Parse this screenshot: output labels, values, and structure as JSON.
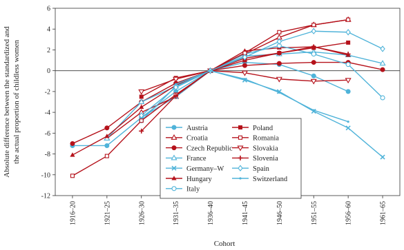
{
  "chart_data": {
    "type": "line",
    "title": "",
    "xlabel": "Cohort",
    "ylabel": "Absolute difference between the standardized and the actual proportion of childless women",
    "ylabel_lines": [
      "Absolute difference between the standardized and",
      "the actual proportion of childless women"
    ],
    "categories": [
      "1916–20",
      "1921–25",
      "1926–30",
      "1931–35",
      "1936–40",
      "1941–45",
      "1946–50",
      "1951–55",
      "1956–60",
      "1961–65"
    ],
    "ylim": [
      -12,
      6
    ],
    "yticks": [
      6,
      4,
      2,
      0,
      -2,
      -4,
      -6,
      -8,
      -10,
      -12
    ],
    "grid": false,
    "legend_position": "center",
    "series": [
      {
        "name": "Austria",
        "color": "#4fb3d9",
        "marker": "circle-filled",
        "values": [
          -7.2,
          -7.2,
          -4.5,
          -2.0,
          0.0,
          0.8,
          0.6,
          -0.5,
          -2.0,
          null
        ]
      },
      {
        "name": "Croatia",
        "color": "#b5121b",
        "marker": "triangle-open",
        "values": [
          null,
          -6.5,
          -4.0,
          -2.5,
          0.0,
          1.6,
          3.2,
          4.4,
          4.9,
          null
        ]
      },
      {
        "name": "Czech Republic",
        "color": "#b5121b",
        "marker": "circle-filled",
        "values": [
          -7.0,
          -5.5,
          -3.0,
          -1.2,
          0.0,
          0.5,
          0.7,
          0.8,
          0.8,
          0.1
        ]
      },
      {
        "name": "France",
        "color": "#4fb3d9",
        "marker": "triangle-open",
        "values": [
          null,
          -6.5,
          -3.0,
          -1.5,
          0.0,
          1.4,
          1.6,
          1.8,
          1.5,
          0.7
        ]
      },
      {
        "name": "Germany–W",
        "color": "#4fb3d9",
        "marker": "x",
        "values": [
          null,
          null,
          -4.5,
          -2.5,
          0.0,
          -0.9,
          -2.0,
          -3.9,
          -5.5,
          -8.3
        ]
      },
      {
        "name": "Hungary",
        "color": "#b5121b",
        "marker": "triangle-filled",
        "values": [
          -8.1,
          -6.3,
          -3.5,
          -1.4,
          0.0,
          1.9,
          2.2,
          2.3,
          1.5,
          null
        ]
      },
      {
        "name": "Italy",
        "color": "#4fb3d9",
        "marker": "circle-open",
        "values": [
          null,
          null,
          -4.8,
          -1.5,
          0.0,
          1.6,
          2.4,
          1.6,
          0.6,
          -2.6
        ]
      },
      {
        "name": "Poland",
        "color": "#b5121b",
        "marker": "square-filled",
        "values": [
          null,
          null,
          -2.5,
          -0.7,
          0.0,
          1.0,
          1.7,
          2.2,
          2.7,
          null
        ]
      },
      {
        "name": "Romania",
        "color": "#b5121b",
        "marker": "square-open",
        "values": [
          -10.1,
          -8.2,
          -4.8,
          -2.3,
          0.0,
          1.7,
          3.7,
          4.4,
          4.9,
          null
        ]
      },
      {
        "name": "Slovakia",
        "color": "#b5121b",
        "marker": "triangle-down-open",
        "values": [
          null,
          null,
          -2.0,
          -0.8,
          0.0,
          -0.2,
          -0.8,
          -1.0,
          -0.9,
          null
        ]
      },
      {
        "name": "Slovenia",
        "color": "#b5121b",
        "marker": "plus",
        "values": [
          null,
          null,
          -5.8,
          -2.4,
          0.0,
          1.2,
          1.7,
          2.3,
          1.6,
          null
        ]
      },
      {
        "name": "Spain",
        "color": "#4fb3d9",
        "marker": "diamond-open",
        "values": [
          null,
          null,
          -4.3,
          -1.6,
          0.0,
          1.3,
          2.8,
          3.8,
          3.7,
          2.1
        ]
      },
      {
        "name": "Switzerland",
        "color": "#4fb3d9",
        "marker": "star",
        "values": [
          null,
          null,
          null,
          -1.3,
          0.0,
          -0.8,
          -2.1,
          -3.8,
          -4.9,
          null
        ]
      }
    ]
  }
}
